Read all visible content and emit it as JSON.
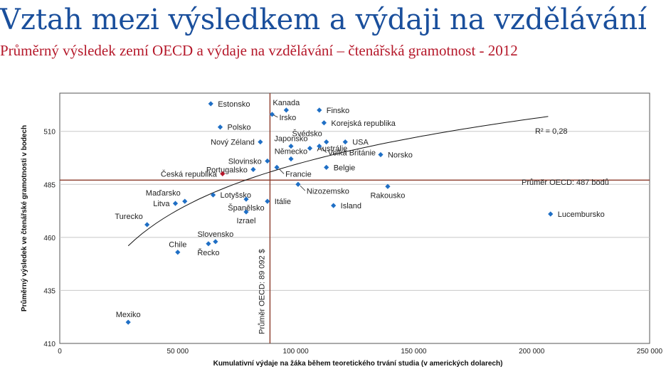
{
  "header": {
    "title": "Vztah mezi výsledkem a výdaji na vzdělávání",
    "subtitle": "Průměrný výsledek zemí OECD a výdaje na vzdělávání – čtenářská gramotnost - 2012"
  },
  "colors": {
    "title": "#1a4f9c",
    "subtitle": "#b5182a",
    "point": "#1f6fc5",
    "highlight": "#b5182a",
    "ref_line": "#8b3a2a",
    "grid": "#c8c8c8"
  },
  "chart_data": {
    "type": "scatter",
    "xlabel": "Kumulativní výdaje na žáka během teoretického trvání studia (v amerických dolarech)",
    "ylabel": "Průměrný výsledek ve čtenářské gramotnosti v bodech",
    "xlim": [
      0,
      250000
    ],
    "ylim": [
      410,
      528
    ],
    "x_ticks": [
      0,
      50000,
      100000,
      150000,
      200000,
      250000
    ],
    "x_tick_labels": [
      "0",
      "50 000",
      "100 000",
      "150 000",
      "200 000",
      "250 000"
    ],
    "y_ticks": [
      410,
      435,
      460,
      485,
      510
    ],
    "y_tick_labels": [
      "410",
      "435",
      "460",
      "485",
      "510"
    ],
    "oecd_avg_x": 89092,
    "oecd_avg_x_label": "Průměr OECD: 89 092 $",
    "oecd_avg_y": 487,
    "oecd_avg_y_label": "Průměr OECD: 487 bodů",
    "r2_label": "R² = 0,28",
    "trend": {
      "type": "log",
      "x_from": 29000,
      "x_to": 207000,
      "y_from": 456,
      "y_to": 517
    },
    "points": [
      {
        "name": "Estonsko",
        "x": 64000,
        "y": 523,
        "label_pos": "r"
      },
      {
        "name": "Kanada",
        "x": 96000,
        "y": 520,
        "label_pos": "above"
      },
      {
        "name": "Irsko",
        "x": 90000,
        "y": 518,
        "label_pos": "ld"
      },
      {
        "name": "Finsko",
        "x": 110000,
        "y": 520,
        "label_pos": "r"
      },
      {
        "name": "Polsko",
        "x": 68000,
        "y": 512,
        "label_pos": "r"
      },
      {
        "name": "Korejská republika",
        "x": 112000,
        "y": 514,
        "label_pos": "r"
      },
      {
        "name": "Japonsko",
        "x": 98000,
        "y": 503,
        "label_pos": "above"
      },
      {
        "name": "Švédsko",
        "x": 113000,
        "y": 505,
        "label_pos": "lu"
      },
      {
        "name": "USA",
        "x": 121000,
        "y": 505,
        "label_pos": "r"
      },
      {
        "name": "Nový Zéland",
        "x": 85000,
        "y": 505,
        "label_pos": "l"
      },
      {
        "name": "Austrálie",
        "x": 106000,
        "y": 502,
        "label_pos": "r"
      },
      {
        "name": "Velká Británie",
        "x": 110000,
        "y": 503,
        "label_pos": "rd"
      },
      {
        "name": "Norsko",
        "x": 136000,
        "y": 499,
        "label_pos": "r"
      },
      {
        "name": "Slovinsko",
        "x": 88000,
        "y": 496,
        "label_pos": "l"
      },
      {
        "name": "Německo",
        "x": 98000,
        "y": 497,
        "label_pos": "above"
      },
      {
        "name": "Portugalsko",
        "x": 82000,
        "y": 492,
        "label_pos": "l"
      },
      {
        "name": "Česká republika",
        "x": 69000,
        "y": 490,
        "label_pos": "l",
        "highlight": true
      },
      {
        "name": "Francie",
        "x": 92000,
        "y": 493,
        "label_pos": "rd"
      },
      {
        "name": "Belgie",
        "x": 113000,
        "y": 493,
        "label_pos": "r"
      },
      {
        "name": "Nizozemsko",
        "x": 101000,
        "y": 485,
        "label_pos": "rd"
      },
      {
        "name": "Rakousko",
        "x": 139000,
        "y": 484,
        "label_pos": "below"
      },
      {
        "name": "Maďarsko",
        "x": 53000,
        "y": 477,
        "label_pos": "lu"
      },
      {
        "name": "Litva",
        "x": 49000,
        "y": 476,
        "label_pos": "l"
      },
      {
        "name": "Lotyšsko",
        "x": 65000,
        "y": 480,
        "label_pos": "r"
      },
      {
        "name": "Španělsko",
        "x": 79000,
        "y": 478,
        "label_pos": "below"
      },
      {
        "name": "Itálie",
        "x": 88000,
        "y": 477,
        "label_pos": "r"
      },
      {
        "name": "Izrael",
        "x": 79000,
        "y": 472,
        "label_pos": "below"
      },
      {
        "name": "Island",
        "x": 116000,
        "y": 475,
        "label_pos": "r"
      },
      {
        "name": "Lucembursko",
        "x": 208000,
        "y": 471,
        "label_pos": "r"
      },
      {
        "name": "Turecko",
        "x": 37000,
        "y": 466,
        "label_pos": "lu"
      },
      {
        "name": "Slovensko",
        "x": 66000,
        "y": 458,
        "label_pos": "above"
      },
      {
        "name": "Řecko",
        "x": 63000,
        "y": 457,
        "label_pos": "below"
      },
      {
        "name": "Chile",
        "x": 50000,
        "y": 453,
        "label_pos": "above"
      },
      {
        "name": "Mexiko",
        "x": 29000,
        "y": 420,
        "label_pos": "above"
      }
    ]
  }
}
